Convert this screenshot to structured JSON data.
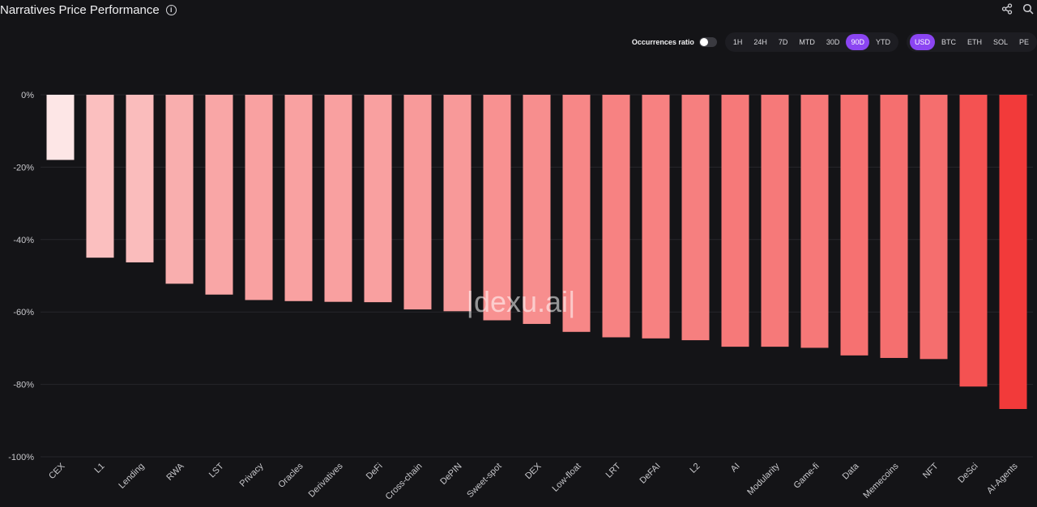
{
  "header": {
    "title": "Narratives Price Performance",
    "info_icon": "i"
  },
  "controls": {
    "occurrences_label": "Occurrences ratio",
    "timeframes": [
      "1H",
      "24H",
      "7D",
      "MTD",
      "30D",
      "90D",
      "YTD"
    ],
    "active_timeframe": "90D",
    "currencies": [
      "USD",
      "BTC",
      "ETH",
      "SOL",
      "PE"
    ],
    "active_currency": "USD"
  },
  "watermark": "|dexu.ai|",
  "colors": {
    "accent": "#8b45f2",
    "bar_light": "#fde6e6",
    "bar_dark": "#f23a3a",
    "background": "#141417"
  },
  "chart_data": {
    "type": "bar",
    "title": "Narratives Price Performance",
    "categories": [
      "CEX",
      "L1",
      "Lending",
      "RWA",
      "LST",
      "Privacy",
      "Oracles",
      "Derivatives",
      "DeFi",
      "Cross-chain",
      "DePIN",
      "Sweet-spot",
      "DEX",
      "Low-float",
      "LRT",
      "DeFAI",
      "L2",
      "AI",
      "Modularity",
      "Game-fi",
      "Data",
      "Memecoins",
      "NFT",
      "DeSci",
      "AI-Agents"
    ],
    "values": [
      -18,
      -45,
      -46.3,
      -52.2,
      -55.2,
      -56.7,
      -57,
      -57.2,
      -57.3,
      -59.3,
      -59.8,
      -62.3,
      -63.3,
      -65.5,
      -67,
      -67.3,
      -67.8,
      -69.6,
      -69.6,
      -69.9,
      -72,
      -72.7,
      -73,
      -80.6,
      -86.8
    ],
    "ylim": [
      -100,
      0
    ],
    "yticks": [
      0,
      -20,
      -40,
      -60,
      -80,
      -100
    ],
    "ytick_labels": [
      "0%",
      "-20%",
      "-40%",
      "-60%",
      "-80%",
      "-100%"
    ],
    "xlabel": "",
    "ylabel": ""
  }
}
